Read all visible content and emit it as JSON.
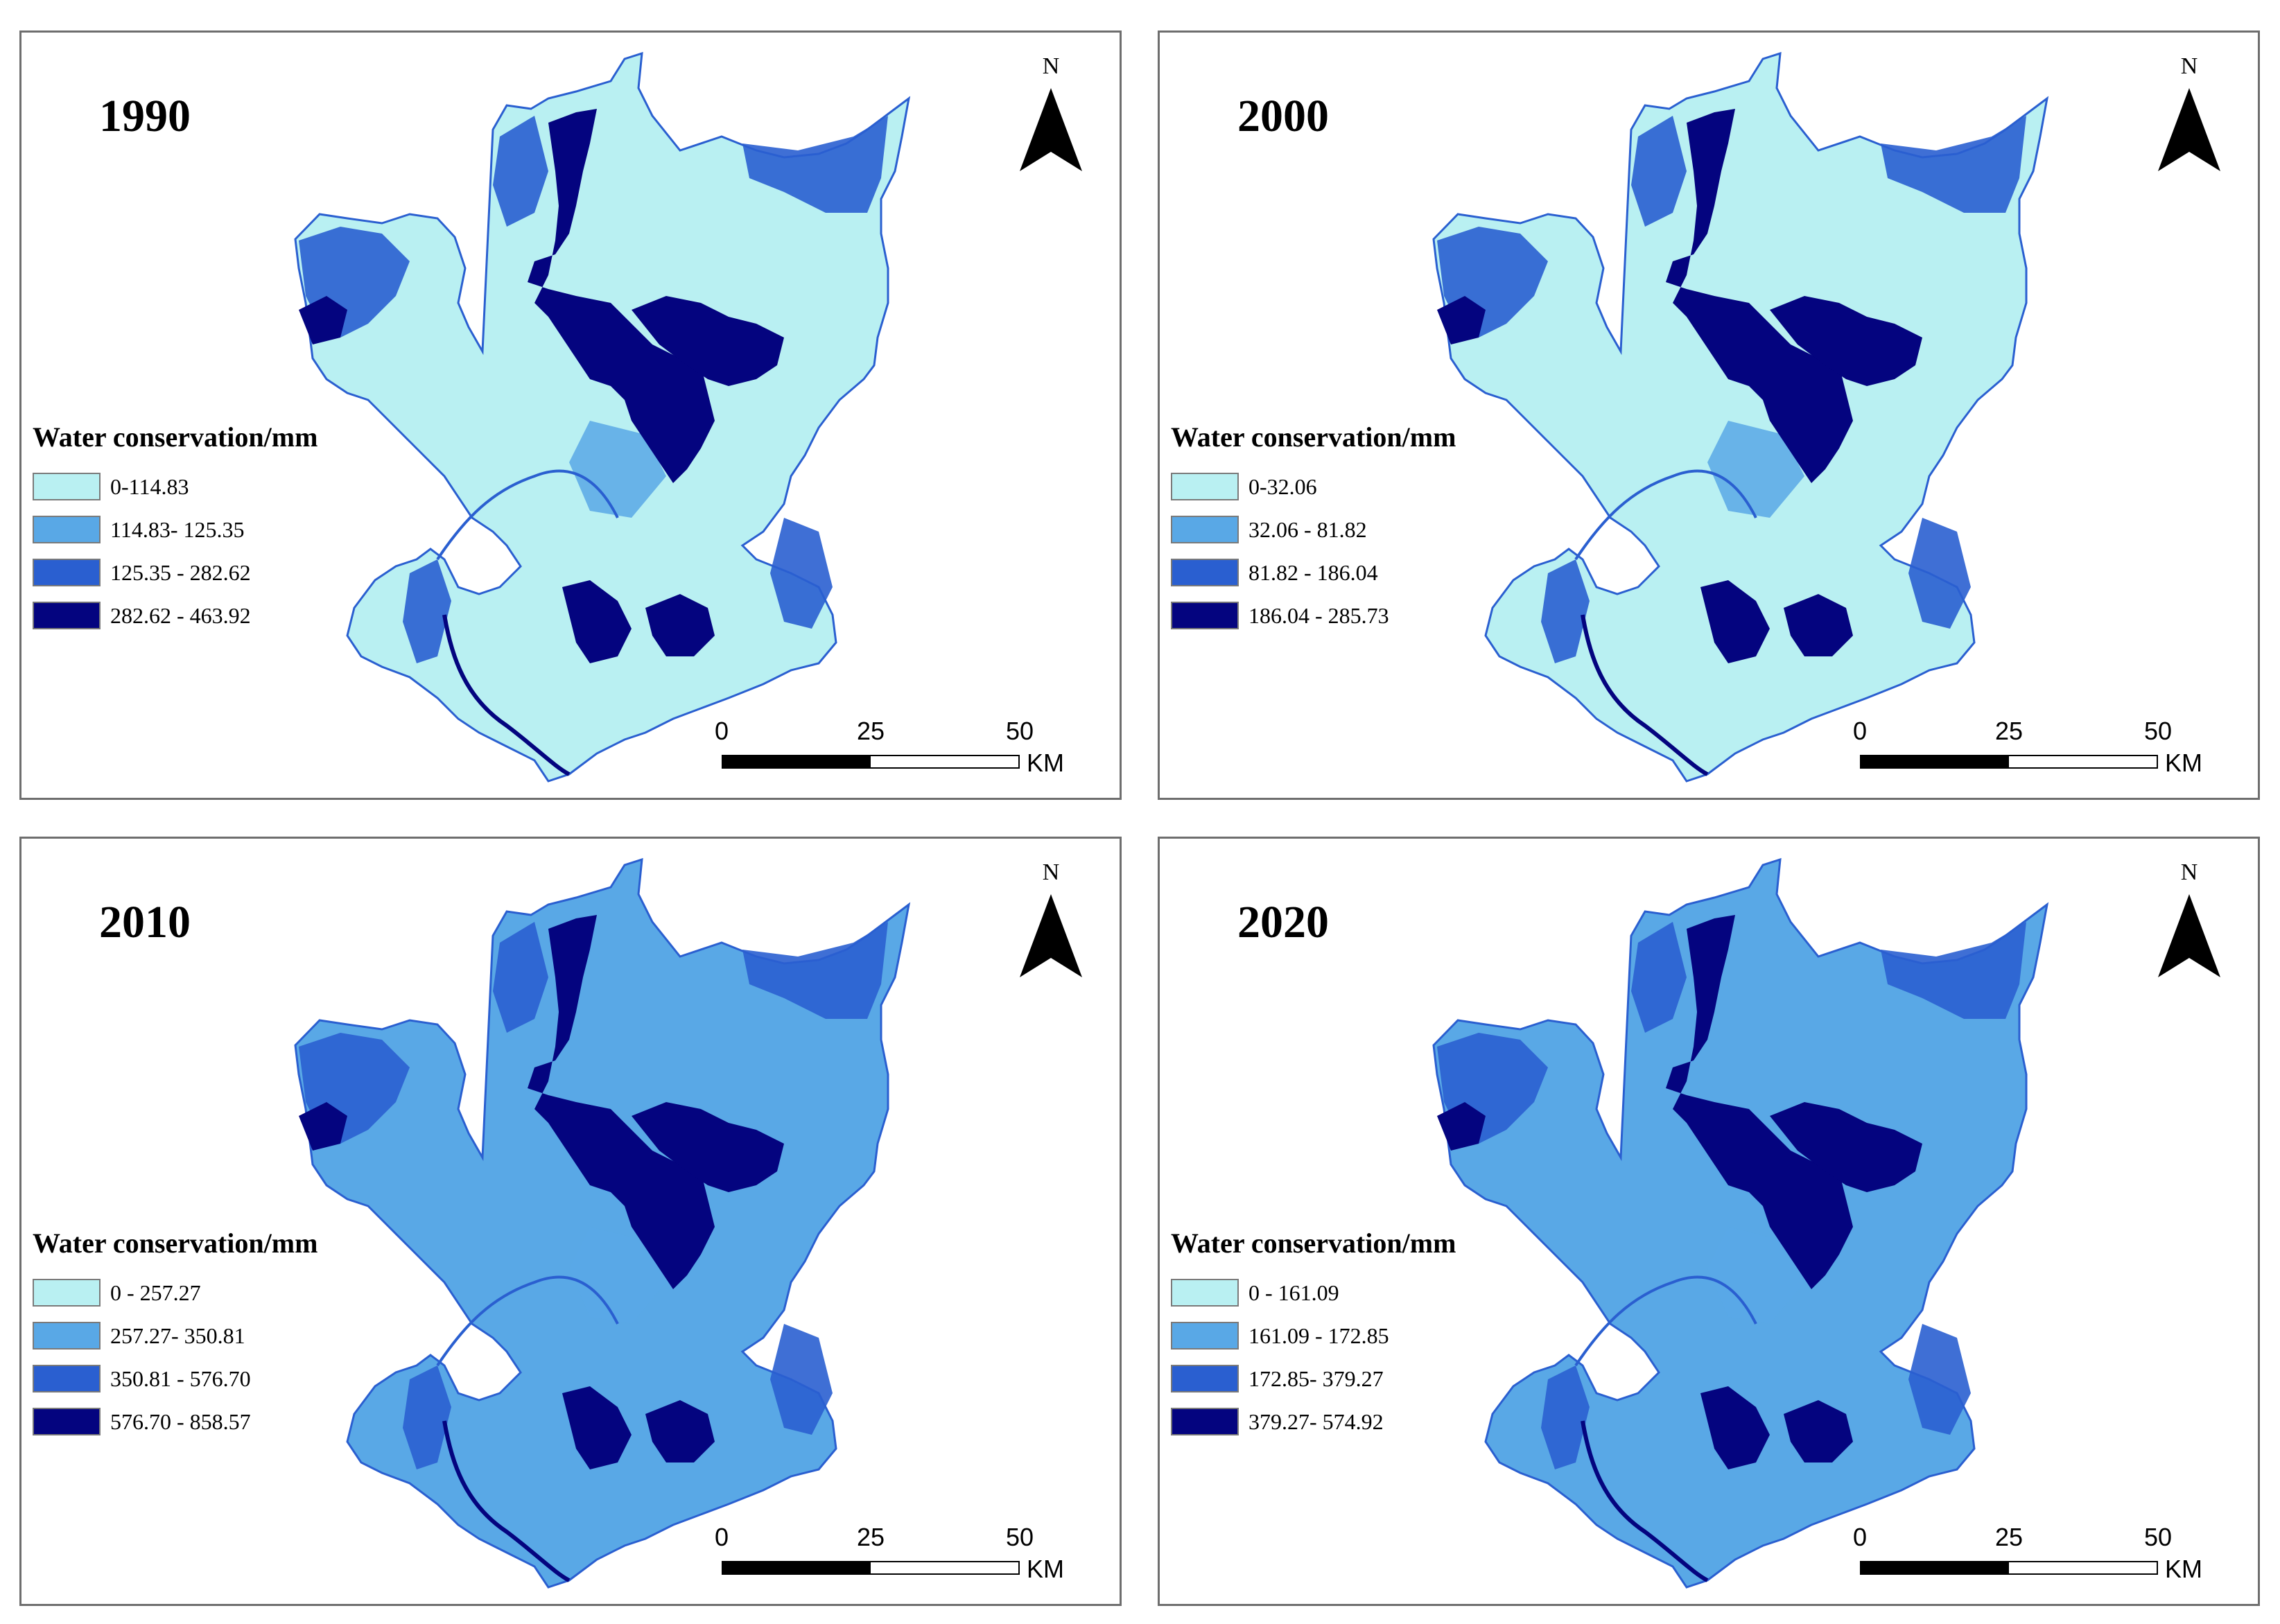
{
  "panels": [
    {
      "year": "1990",
      "legend": {
        "title": "Water conservation/mm",
        "classes": [
          {
            "label": "0-114.83",
            "color": "#b9f0f2"
          },
          {
            "label": "114.83- 125.35",
            "color": "#59a8e6"
          },
          {
            "label": "125.35 - 282.62",
            "color": "#2a5fd0"
          },
          {
            "label": "282.62 - 463.92",
            "color": "#04047f"
          }
        ]
      },
      "north_label": "N",
      "scale": {
        "ticks": [
          "0",
          "25",
          "50"
        ],
        "unit": "KM"
      }
    },
    {
      "year": "2000",
      "legend": {
        "title": "Water conservation/mm",
        "classes": [
          {
            "label": "0-32.06",
            "color": "#b9f0f2"
          },
          {
            "label": "32.06 - 81.82",
            "color": "#59a8e6"
          },
          {
            "label": "81.82 - 186.04",
            "color": "#2a5fd0"
          },
          {
            "label": "186.04 - 285.73",
            "color": "#04047f"
          }
        ]
      },
      "north_label": "N",
      "scale": {
        "ticks": [
          "0",
          "25",
          "50"
        ],
        "unit": "KM"
      }
    },
    {
      "year": "2010",
      "legend": {
        "title": "Water conservation/mm",
        "classes": [
          {
            "label": "0 - 257.27",
            "color": "#b9f0f2"
          },
          {
            "label": "257.27- 350.81",
            "color": "#59a8e6"
          },
          {
            "label": "350.81 - 576.70",
            "color": "#2a5fd0"
          },
          {
            "label": "576.70 - 858.57",
            "color": "#04047f"
          }
        ]
      },
      "north_label": "N",
      "scale": {
        "ticks": [
          "0",
          "25",
          "50"
        ],
        "unit": "KM"
      }
    },
    {
      "year": "2020",
      "legend": {
        "title": "Water conservation/mm",
        "classes": [
          {
            "label": "0 - 161.09",
            "color": "#b9f0f2"
          },
          {
            "label": "161.09 - 172.85",
            "color": "#59a8e6"
          },
          {
            "label": "172.85- 379.27",
            "color": "#2a5fd0"
          },
          {
            "label": "379.27- 574.92",
            "color": "#04047f"
          }
        ]
      },
      "north_label": "N",
      "scale": {
        "ticks": [
          "0",
          "25",
          "50"
        ],
        "unit": "KM"
      }
    }
  ]
}
